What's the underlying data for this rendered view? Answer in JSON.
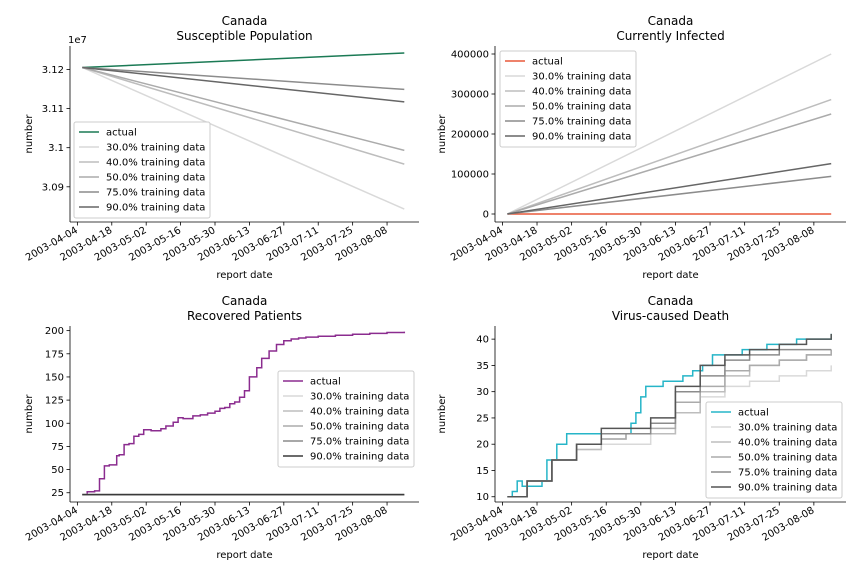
{
  "window": {
    "title": ""
  },
  "chart_data": [
    {
      "type": "line",
      "title": "Canada",
      "subtitle": "Susceptible Population",
      "xlabel": "report date",
      "ylabel": "number",
      "offset_text": "1e7",
      "x_ticks": [
        "2003-04-04",
        "2003-04-18",
        "2003-05-02",
        "2003-05-16",
        "2003-05-30",
        "2003-06-13",
        "2003-06-27",
        "2003-07-11",
        "2003-07-25",
        "2003-08-08"
      ],
      "y_ticks": [
        3.09,
        3.1,
        3.11,
        3.12
      ],
      "ylim": [
        3.081,
        3.126
      ],
      "grid": false,
      "legend_position": "lower left",
      "series": [
        {
          "name": "actual",
          "color": "#1b7a55",
          "x": [
            "2003-04-06",
            "2003-08-15"
          ],
          "y": [
            3.1205,
            3.1242
          ]
        },
        {
          "name": "30.0% training data",
          "color": "#d9d9d9",
          "x": [
            "2003-04-06",
            "2003-08-15"
          ],
          "y": [
            3.1205,
            3.0843
          ]
        },
        {
          "name": "40.0% training data",
          "color": "#bdbdbd",
          "x": [
            "2003-04-06",
            "2003-08-15"
          ],
          "y": [
            3.1205,
            3.0958
          ]
        },
        {
          "name": "50.0% training data",
          "color": "#ababab",
          "x": [
            "2003-04-06",
            "2003-08-15"
          ],
          "y": [
            3.1205,
            3.0993
          ]
        },
        {
          "name": "75.0% training data",
          "color": "#8c8c8c",
          "x": [
            "2003-04-06",
            "2003-08-15"
          ],
          "y": [
            3.1205,
            3.1149
          ]
        },
        {
          "name": "90.0% training data",
          "color": "#666666",
          "x": [
            "2003-04-06",
            "2003-08-15"
          ],
          "y": [
            3.1205,
            3.1117
          ]
        }
      ]
    },
    {
      "type": "line",
      "title": "Canada",
      "subtitle": "Currently Infected",
      "xlabel": "report date",
      "ylabel": "number",
      "x_ticks": [
        "2003-04-04",
        "2003-04-18",
        "2003-05-02",
        "2003-05-16",
        "2003-05-30",
        "2003-06-13",
        "2003-06-27",
        "2003-07-11",
        "2003-07-25",
        "2003-08-08"
      ],
      "y_ticks": [
        0,
        100000,
        200000,
        300000,
        400000
      ],
      "ylim": [
        -20000,
        420000
      ],
      "grid": false,
      "legend_position": "upper left",
      "series": [
        {
          "name": "actual",
          "color": "#e8593a",
          "x": [
            "2003-04-06",
            "2003-08-15"
          ],
          "y": [
            0,
            0
          ]
        },
        {
          "name": "30.0% training data",
          "color": "#d9d9d9",
          "x": [
            "2003-04-06",
            "2003-08-15"
          ],
          "y": [
            0,
            400000
          ]
        },
        {
          "name": "40.0% training data",
          "color": "#bdbdbd",
          "x": [
            "2003-04-06",
            "2003-08-15"
          ],
          "y": [
            0,
            286000
          ]
        },
        {
          "name": "50.0% training data",
          "color": "#ababab",
          "x": [
            "2003-04-06",
            "2003-08-15"
          ],
          "y": [
            0,
            250000
          ]
        },
        {
          "name": "75.0% training data",
          "color": "#8c8c8c",
          "x": [
            "2003-04-06",
            "2003-08-15"
          ],
          "y": [
            0,
            94000
          ]
        },
        {
          "name": "90.0% training data",
          "color": "#666666",
          "x": [
            "2003-04-06",
            "2003-08-15"
          ],
          "y": [
            0,
            126000
          ]
        }
      ]
    },
    {
      "type": "line",
      "title": "Canada",
      "subtitle": "Recovered Patients",
      "xlabel": "report date",
      "ylabel": "number",
      "x_ticks": [
        "2003-04-04",
        "2003-04-18",
        "2003-05-02",
        "2003-05-16",
        "2003-05-30",
        "2003-06-13",
        "2003-06-27",
        "2003-07-11",
        "2003-07-25",
        "2003-08-08"
      ],
      "y_ticks": [
        25,
        50,
        75,
        100,
        125,
        150,
        175,
        200
      ],
      "ylim": [
        15,
        205
      ],
      "grid": false,
      "legend_position": "center right",
      "series": [
        {
          "name": "actual",
          "color": "#8b2c8f",
          "x": [
            "2003-04-06",
            "2003-04-08",
            "2003-04-11",
            "2003-04-13",
            "2003-04-15",
            "2003-04-17",
            "2003-04-20",
            "2003-04-21",
            "2003-04-23",
            "2003-04-25",
            "2003-04-27",
            "2003-04-29",
            "2003-05-01",
            "2003-05-04",
            "2003-05-08",
            "2003-05-10",
            "2003-05-13",
            "2003-05-15",
            "2003-05-17",
            "2003-05-21",
            "2003-05-24",
            "2003-05-27",
            "2003-05-30",
            "2003-06-01",
            "2003-06-03",
            "2003-06-05",
            "2003-06-07",
            "2003-06-09",
            "2003-06-11",
            "2003-06-13",
            "2003-06-16",
            "2003-06-18",
            "2003-06-21",
            "2003-06-24",
            "2003-06-27",
            "2003-06-30",
            "2003-07-03",
            "2003-07-06",
            "2003-07-11",
            "2003-07-18",
            "2003-07-25",
            "2003-08-01",
            "2003-08-08",
            "2003-08-15"
          ],
          "y": [
            23,
            26,
            27,
            40,
            54,
            55,
            65,
            66,
            77,
            78,
            86,
            88,
            93,
            92,
            94,
            97,
            101,
            106,
            105,
            108,
            109,
            111,
            113,
            116,
            117,
            121,
            123,
            128,
            135,
            150,
            160,
            170,
            178,
            185,
            189,
            191,
            192,
            193,
            194,
            195,
            196,
            197,
            198,
            199
          ]
        },
        {
          "name": "30.0% training data",
          "color": "#d9d9d9",
          "x": [
            "2003-04-06",
            "2003-08-15"
          ],
          "y": [
            23,
            23
          ]
        },
        {
          "name": "40.0% training data",
          "color": "#bdbdbd",
          "x": [
            "2003-04-06",
            "2003-08-15"
          ],
          "y": [
            23,
            23
          ]
        },
        {
          "name": "50.0% training data",
          "color": "#ababab",
          "x": [
            "2003-04-06",
            "2003-08-15"
          ],
          "y": [
            23,
            23
          ]
        },
        {
          "name": "75.0% training data",
          "color": "#8c8c8c",
          "x": [
            "2003-04-06",
            "2003-08-15"
          ],
          "y": [
            23,
            23
          ]
        },
        {
          "name": "90.0% training data",
          "color": "#3a3a3a",
          "x": [
            "2003-04-06",
            "2003-08-15"
          ],
          "y": [
            23,
            23
          ]
        }
      ]
    },
    {
      "type": "line",
      "title": "Canada",
      "subtitle": "Virus-caused Death",
      "xlabel": "report date",
      "ylabel": "number",
      "x_ticks": [
        "2003-04-04",
        "2003-04-18",
        "2003-05-02",
        "2003-05-16",
        "2003-05-30",
        "2003-06-13",
        "2003-06-27",
        "2003-07-11",
        "2003-07-25",
        "2003-08-08"
      ],
      "y_ticks": [
        10,
        15,
        20,
        25,
        30,
        35,
        40
      ],
      "ylim": [
        9,
        42.5
      ],
      "grid": false,
      "legend_position": "lower right",
      "series": [
        {
          "name": "actual",
          "color": "#26b5c8",
          "x": [
            "2003-04-06",
            "2003-04-08",
            "2003-04-10",
            "2003-04-12",
            "2003-04-16",
            "2003-04-20",
            "2003-04-22",
            "2003-04-26",
            "2003-04-30",
            "2003-05-04",
            "2003-05-10",
            "2003-05-16",
            "2003-05-22",
            "2003-05-26",
            "2003-05-28",
            "2003-05-30",
            "2003-06-01",
            "2003-06-04",
            "2003-06-08",
            "2003-06-12",
            "2003-06-16",
            "2003-06-20",
            "2003-06-24",
            "2003-06-28",
            "2003-07-02",
            "2003-07-10",
            "2003-07-20",
            "2003-08-01",
            "2003-08-15"
          ],
          "y": [
            10,
            11,
            13,
            12,
            12,
            13,
            17,
            20,
            22,
            22,
            22,
            22,
            22,
            24,
            26,
            29,
            31,
            31,
            32,
            32,
            33,
            34,
            35,
            37,
            37,
            38,
            39,
            40,
            41
          ]
        },
        {
          "name": "30.0% training data",
          "color": "#d9d9d9",
          "x": [
            "2003-04-06",
            "2003-04-14",
            "2003-04-24",
            "2003-05-04",
            "2003-05-14",
            "2003-05-24",
            "2003-06-03",
            "2003-06-13",
            "2003-06-23",
            "2003-07-03",
            "2003-07-13",
            "2003-07-25",
            "2003-08-05",
            "2003-08-15"
          ],
          "y": [
            10,
            13,
            17,
            19,
            20,
            20,
            22,
            26,
            29,
            31,
            32,
            33,
            34,
            35
          ]
        },
        {
          "name": "40.0% training data",
          "color": "#bdbdbd",
          "x": [
            "2003-04-06",
            "2003-04-14",
            "2003-04-24",
            "2003-05-04",
            "2003-05-14",
            "2003-05-24",
            "2003-06-03",
            "2003-06-13",
            "2003-06-23",
            "2003-07-03",
            "2003-07-13",
            "2003-07-25",
            "2003-08-05",
            "2003-08-15"
          ],
          "y": [
            10,
            13,
            17,
            19,
            21,
            22,
            22,
            26,
            30,
            33,
            35,
            36,
            37,
            38
          ]
        },
        {
          "name": "50.0% training data",
          "color": "#ababab",
          "x": [
            "2003-04-06",
            "2003-04-14",
            "2003-04-24",
            "2003-05-04",
            "2003-05-14",
            "2003-05-24",
            "2003-06-03",
            "2003-06-13",
            "2003-06-23",
            "2003-07-03",
            "2003-07-13",
            "2003-07-25",
            "2003-08-05",
            "2003-08-15"
          ],
          "y": [
            10,
            13,
            17,
            20,
            21,
            22,
            23,
            28,
            31,
            34,
            35,
            36,
            37,
            38
          ]
        },
        {
          "name": "75.0% training data",
          "color": "#8c8c8c",
          "x": [
            "2003-04-06",
            "2003-04-14",
            "2003-04-24",
            "2003-05-04",
            "2003-05-14",
            "2003-05-24",
            "2003-06-03",
            "2003-06-13",
            "2003-06-23",
            "2003-07-03",
            "2003-07-13",
            "2003-07-25",
            "2003-08-05",
            "2003-08-15"
          ],
          "y": [
            10,
            13,
            17,
            20,
            22,
            22,
            24,
            30,
            33,
            36,
            37,
            38,
            38,
            38
          ]
        },
        {
          "name": "90.0% training data",
          "color": "#555555",
          "x": [
            "2003-04-06",
            "2003-04-14",
            "2003-04-24",
            "2003-05-04",
            "2003-05-14",
            "2003-05-24",
            "2003-06-03",
            "2003-06-13",
            "2003-06-23",
            "2003-07-03",
            "2003-07-13",
            "2003-07-25",
            "2003-08-05",
            "2003-08-15"
          ],
          "y": [
            10,
            13,
            17,
            20,
            23,
            23,
            25,
            31,
            35,
            37,
            38,
            39,
            40,
            41
          ]
        }
      ]
    }
  ]
}
